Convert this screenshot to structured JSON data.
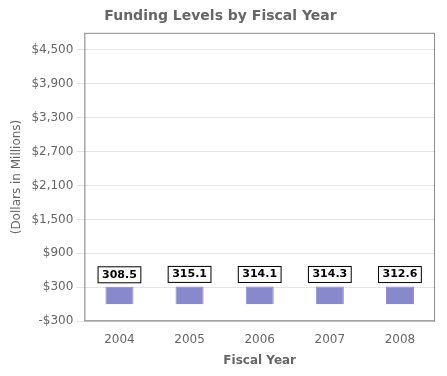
{
  "chart_data": {
    "type": "bar",
    "title": "Funding Levels by Fiscal Year",
    "xlabel": "Fiscal Year",
    "ylabel": "(Dollars in Millions)",
    "categories": [
      "2004",
      "2005",
      "2006",
      "2007",
      "2008"
    ],
    "values": [
      308.5,
      315.1,
      314.1,
      314.3,
      312.6
    ],
    "color": "#8888cc",
    "ylim": [
      -300,
      4800
    ],
    "yticks": [
      {
        "value": -300,
        "label": "-$300"
      },
      {
        "value": 300,
        "label": "$300"
      },
      {
        "value": 900,
        "label": "$900"
      },
      {
        "value": 1500,
        "label": "$1,500"
      },
      {
        "value": 2100,
        "label": "$2,100"
      },
      {
        "value": 2700,
        "label": "$2,700"
      },
      {
        "value": 3300,
        "label": "$3,300"
      },
      {
        "value": 3900,
        "label": "$3,900"
      },
      {
        "value": 4500,
        "label": "$4,500"
      }
    ],
    "grid": true,
    "data_labels": true
  }
}
